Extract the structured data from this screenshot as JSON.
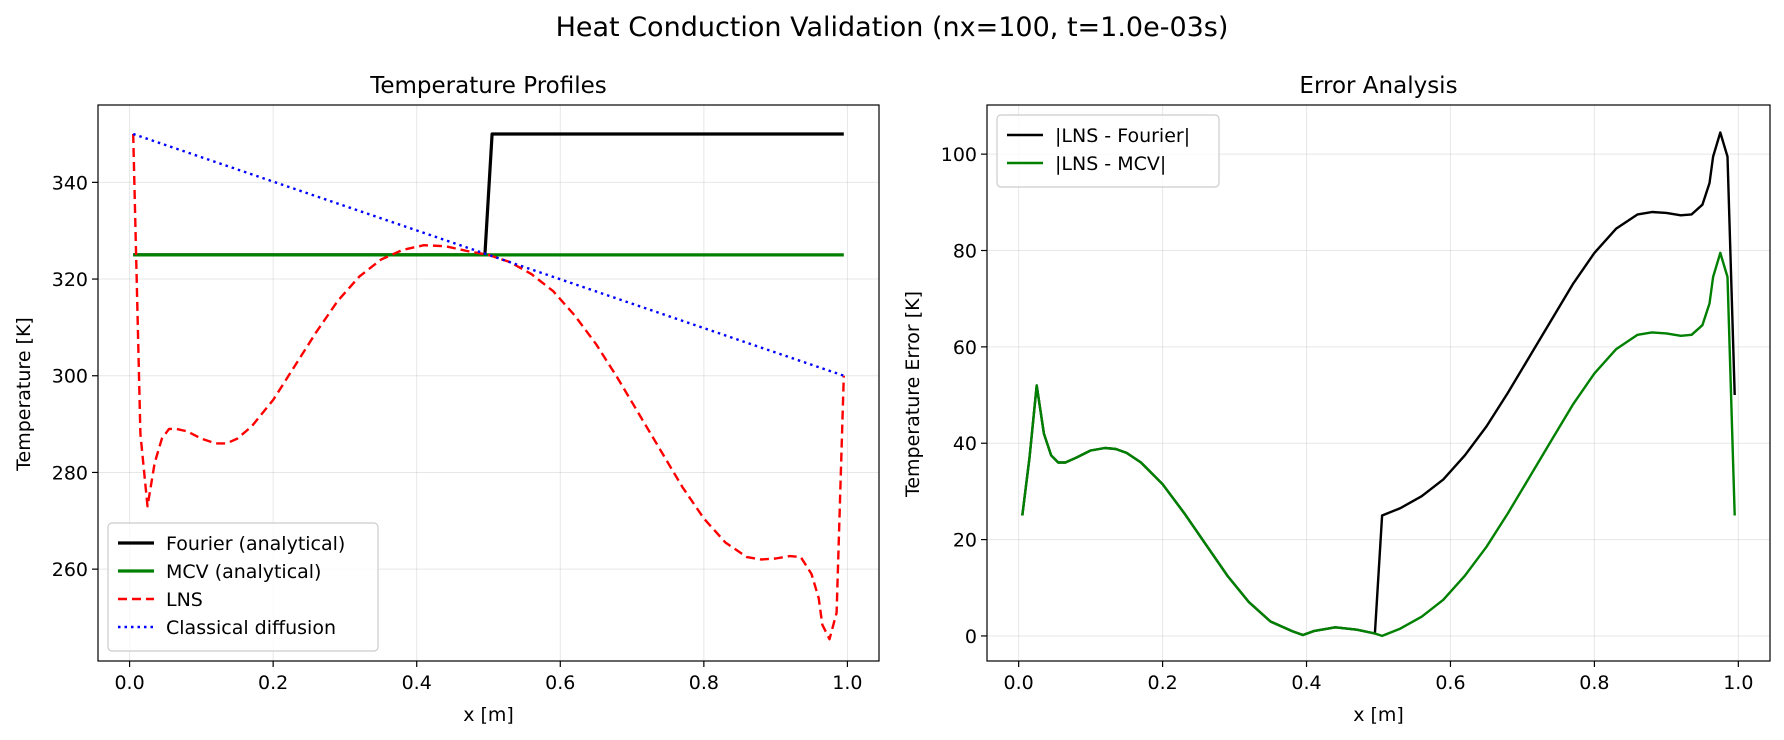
{
  "figure": {
    "suptitle": "Heat Conduction Validation (nx=100, t=1.0e-03s)"
  },
  "chart_data": [
    {
      "type": "line",
      "title": "Temperature Profiles",
      "xlabel": "x [m]",
      "ylabel": "Temperature [K]",
      "xlim": [
        -0.044,
        1.044
      ],
      "ylim": [
        241,
        356
      ],
      "xticks": [
        0.0,
        0.2,
        0.4,
        0.6,
        0.8,
        1.0
      ],
      "xtick_labels": [
        "0.0",
        "0.2",
        "0.4",
        "0.6",
        "0.8",
        "1.0"
      ],
      "yticks": [
        260,
        280,
        300,
        320,
        340
      ],
      "ytick_labels": [
        "260",
        "280",
        "300",
        "320",
        "340"
      ],
      "grid": true,
      "legend_position": "lower-left",
      "series": [
        {
          "name": "Fourier (analytical)",
          "color": "#000000",
          "style": "solid",
          "width": 3.2,
          "x": [
            0.005,
            0.495,
            0.505,
            0.995
          ],
          "y": [
            325,
            325,
            350,
            350
          ]
        },
        {
          "name": "MCV (analytical)",
          "color": "#008000",
          "style": "solid",
          "width": 3.2,
          "x": [
            0.005,
            0.995
          ],
          "y": [
            325,
            325
          ]
        },
        {
          "name": "LNS",
          "color": "#ff0000",
          "style": "dashed",
          "width": 2.4,
          "x": [
            0.005,
            0.015,
            0.025,
            0.035,
            0.045,
            0.055,
            0.065,
            0.08,
            0.1,
            0.12,
            0.135,
            0.15,
            0.17,
            0.2,
            0.23,
            0.26,
            0.29,
            0.32,
            0.35,
            0.38,
            0.41,
            0.44,
            0.47,
            0.5,
            0.53,
            0.56,
            0.59,
            0.62,
            0.65,
            0.68,
            0.71,
            0.74,
            0.77,
            0.8,
            0.83,
            0.86,
            0.88,
            0.9,
            0.92,
            0.935,
            0.95,
            0.96,
            0.965,
            0.975,
            0.985,
            0.995
          ],
          "y": [
            350,
            288,
            273,
            282,
            287,
            289,
            289,
            288.5,
            287,
            286,
            286,
            287,
            289.5,
            295,
            302,
            309,
            315.5,
            320.5,
            324,
            326,
            327,
            326.8,
            325.8,
            325,
            323.5,
            321,
            317.5,
            312.5,
            306.5,
            299.5,
            292,
            284.5,
            277,
            270.5,
            265.5,
            262.5,
            262,
            262.2,
            262.7,
            262.5,
            259,
            254,
            248.5,
            245.5,
            251,
            300
          ]
        },
        {
          "name": "Classical diffusion",
          "color": "#0000ff",
          "style": "dotted",
          "width": 2.4,
          "x": [
            0.005,
            0.995
          ],
          "y": [
            350,
            300
          ]
        }
      ]
    },
    {
      "type": "line",
      "title": "Error Analysis",
      "xlabel": "x [m]",
      "ylabel": "Temperature Error [K]",
      "xlim": [
        -0.044,
        1.044
      ],
      "ylim": [
        -5.2,
        110.2
      ],
      "xticks": [
        0.0,
        0.2,
        0.4,
        0.6,
        0.8,
        1.0
      ],
      "xtick_labels": [
        "0.0",
        "0.2",
        "0.4",
        "0.6",
        "0.8",
        "1.0"
      ],
      "yticks": [
        0,
        20,
        40,
        60,
        80,
        100
      ],
      "ytick_labels": [
        "0",
        "20",
        "40",
        "60",
        "80",
        "100"
      ],
      "grid": true,
      "legend_position": "top-left",
      "series": [
        {
          "name": "|LNS - Fourier|",
          "color": "#000000",
          "style": "solid",
          "width": 2.4,
          "x": [
            0.005,
            0.015,
            0.025,
            0.035,
            0.045,
            0.055,
            0.065,
            0.08,
            0.1,
            0.12,
            0.135,
            0.15,
            0.17,
            0.2,
            0.23,
            0.26,
            0.29,
            0.32,
            0.35,
            0.38,
            0.395,
            0.41,
            0.44,
            0.47,
            0.495,
            0.505,
            0.53,
            0.56,
            0.59,
            0.62,
            0.65,
            0.68,
            0.71,
            0.74,
            0.77,
            0.8,
            0.83,
            0.86,
            0.88,
            0.9,
            0.92,
            0.935,
            0.95,
            0.96,
            0.965,
            0.975,
            0.985,
            0.995
          ],
          "y": [
            25,
            37,
            52,
            42,
            37.5,
            36,
            36,
            37,
            38.5,
            39,
            38.8,
            38,
            36,
            31.5,
            25.5,
            19,
            12.5,
            7,
            3,
            1,
            0.2,
            1,
            1.8,
            1.3,
            0.5,
            25,
            26.5,
            29,
            32.5,
            37.5,
            43.5,
            50.5,
            58,
            65.5,
            73,
            79.5,
            84.5,
            87.5,
            88,
            87.8,
            87.3,
            87.5,
            89.5,
            94,
            99.5,
            104.5,
            99.5,
            50
          ]
        },
        {
          "name": "|LNS - MCV|",
          "color": "#008000",
          "style": "solid",
          "width": 2.4,
          "x": [
            0.005,
            0.015,
            0.025,
            0.035,
            0.045,
            0.055,
            0.065,
            0.08,
            0.1,
            0.12,
            0.135,
            0.15,
            0.17,
            0.2,
            0.23,
            0.26,
            0.29,
            0.32,
            0.35,
            0.38,
            0.395,
            0.41,
            0.44,
            0.47,
            0.495,
            0.505,
            0.53,
            0.56,
            0.59,
            0.62,
            0.65,
            0.68,
            0.71,
            0.74,
            0.77,
            0.8,
            0.83,
            0.86,
            0.88,
            0.9,
            0.92,
            0.935,
            0.95,
            0.96,
            0.965,
            0.975,
            0.985,
            0.995
          ],
          "y": [
            25,
            37,
            52,
            42,
            37.5,
            36,
            36,
            37,
            38.5,
            39,
            38.8,
            38,
            36,
            31.5,
            25.5,
            19,
            12.5,
            7,
            3,
            1,
            0.2,
            1,
            1.8,
            1.3,
            0.5,
            0,
            1.5,
            4,
            7.5,
            12.5,
            18.5,
            25.5,
            33,
            40.5,
            48,
            54.5,
            59.5,
            62.5,
            63,
            62.8,
            62.3,
            62.5,
            64.5,
            69,
            74.5,
            79.5,
            74.5,
            25
          ]
        }
      ]
    }
  ]
}
